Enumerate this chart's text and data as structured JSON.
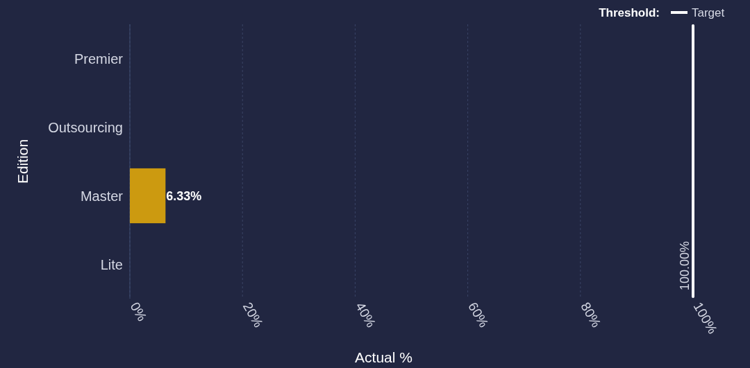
{
  "chart_data": {
    "type": "bar",
    "orientation": "horizontal",
    "ylabel": "Edition",
    "xlabel": "Actual %",
    "categories": [
      "Premier",
      "Outsourcing",
      "Master",
      "Lite"
    ],
    "series": [
      {
        "color": "#cc9a10",
        "values": [
          null,
          null,
          6.33,
          null
        ],
        "value_labels": [
          null,
          null,
          "6.33%",
          null
        ]
      }
    ],
    "xlim": [
      0,
      100
    ],
    "xticks": [
      {
        "value": 0,
        "label": "0%"
      },
      {
        "value": 20,
        "label": "20%"
      },
      {
        "value": 40,
        "label": "40%"
      },
      {
        "value": 60,
        "label": "60%"
      },
      {
        "value": 80,
        "label": "80%"
      },
      {
        "value": 100,
        "label": "100%"
      }
    ],
    "grid": "x",
    "legend": "top right",
    "legend_title": "Threshold:",
    "ref_lines": [
      {
        "axis": "x",
        "value": 100,
        "label": "Target",
        "color": "#ffffff"
      }
    ],
    "annotations": [
      {
        "text": "100.00%",
        "x": 100
      }
    ]
  }
}
